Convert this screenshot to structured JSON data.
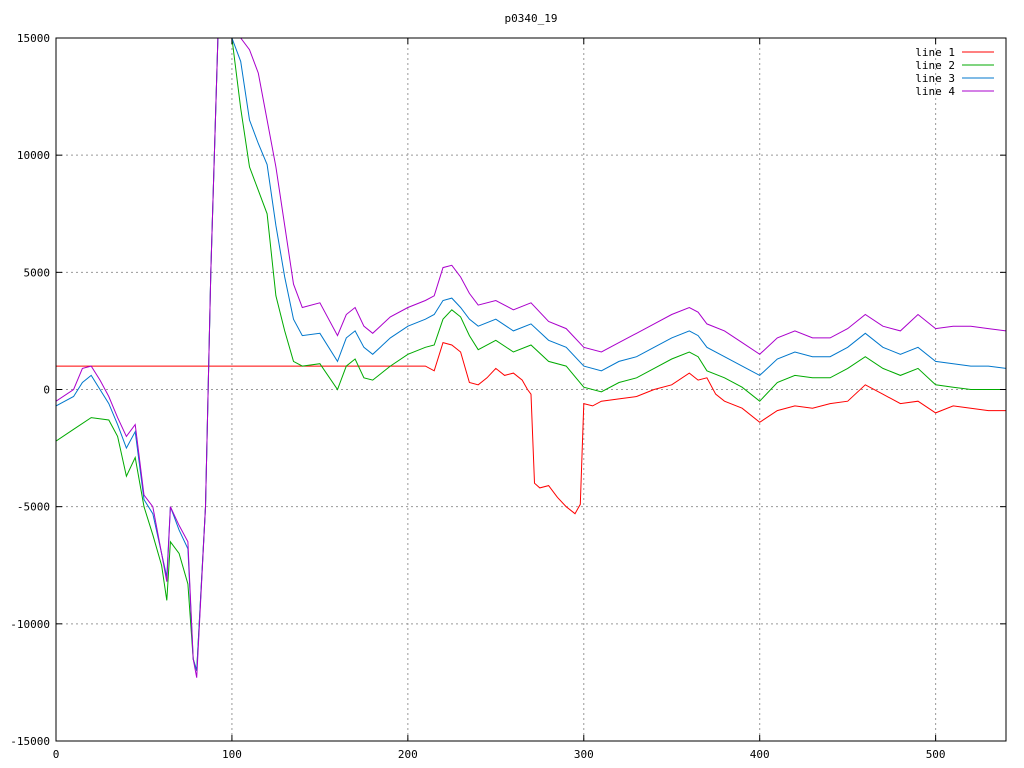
{
  "chart_data": {
    "type": "line",
    "title": "p0340_19",
    "xlabel": "",
    "ylabel": "",
    "xlim": [
      0,
      540
    ],
    "ylim": [
      -15000,
      15000
    ],
    "x_ticks": [
      0,
      100,
      200,
      300,
      400,
      500
    ],
    "y_ticks": [
      -15000,
      -10000,
      -5000,
      0,
      5000,
      10000,
      15000
    ],
    "grid": true,
    "legend_position": "top-right",
    "series": [
      {
        "name": "line 1",
        "color": "#ff0000",
        "points": [
          [
            0,
            1000
          ],
          [
            20,
            1000
          ],
          [
            50,
            1000
          ],
          [
            100,
            1000
          ],
          [
            150,
            1000
          ],
          [
            200,
            1000
          ],
          [
            210,
            1000
          ],
          [
            215,
            800
          ],
          [
            220,
            2000
          ],
          [
            225,
            1900
          ],
          [
            230,
            1600
          ],
          [
            235,
            300
          ],
          [
            240,
            200
          ],
          [
            245,
            500
          ],
          [
            250,
            900
          ],
          [
            255,
            600
          ],
          [
            260,
            700
          ],
          [
            265,
            400
          ],
          [
            268,
            0
          ],
          [
            270,
            -200
          ],
          [
            272,
            -4000
          ],
          [
            275,
            -4200
          ],
          [
            280,
            -4100
          ],
          [
            285,
            -4600
          ],
          [
            290,
            -5000
          ],
          [
            295,
            -5300
          ],
          [
            298,
            -4900
          ],
          [
            300,
            -600
          ],
          [
            305,
            -700
          ],
          [
            310,
            -500
          ],
          [
            320,
            -400
          ],
          [
            330,
            -300
          ],
          [
            340,
            0
          ],
          [
            350,
            200
          ],
          [
            360,
            700
          ],
          [
            365,
            400
          ],
          [
            370,
            500
          ],
          [
            375,
            -200
          ],
          [
            380,
            -500
          ],
          [
            390,
            -800
          ],
          [
            400,
            -1400
          ],
          [
            410,
            -900
          ],
          [
            420,
            -700
          ],
          [
            430,
            -800
          ],
          [
            440,
            -600
          ],
          [
            450,
            -500
          ],
          [
            460,
            200
          ],
          [
            470,
            -200
          ],
          [
            480,
            -600
          ],
          [
            490,
            -500
          ],
          [
            500,
            -1000
          ],
          [
            510,
            -700
          ],
          [
            520,
            -800
          ],
          [
            530,
            -900
          ],
          [
            540,
            -900
          ]
        ]
      },
      {
        "name": "line 2",
        "color": "#00aa00",
        "points": [
          [
            0,
            -2200
          ],
          [
            10,
            -1700
          ],
          [
            20,
            -1200
          ],
          [
            30,
            -1300
          ],
          [
            35,
            -2000
          ],
          [
            40,
            -3700
          ],
          [
            45,
            -2900
          ],
          [
            50,
            -5000
          ],
          [
            55,
            -6200
          ],
          [
            60,
            -7500
          ],
          [
            63,
            -9000
          ],
          [
            65,
            -6500
          ],
          [
            70,
            -7000
          ],
          [
            75,
            -8300
          ],
          [
            78,
            -11500
          ],
          [
            80,
            -12000
          ],
          [
            85,
            -5000
          ],
          [
            88,
            5000
          ],
          [
            92,
            15000
          ],
          [
            100,
            15000
          ],
          [
            105,
            12000
          ],
          [
            110,
            9500
          ],
          [
            115,
            8500
          ],
          [
            120,
            7500
          ],
          [
            125,
            4000
          ],
          [
            130,
            2500
          ],
          [
            135,
            1200
          ],
          [
            140,
            1000
          ],
          [
            150,
            1100
          ],
          [
            160,
            0
          ],
          [
            165,
            1000
          ],
          [
            170,
            1300
          ],
          [
            175,
            500
          ],
          [
            180,
            400
          ],
          [
            190,
            1000
          ],
          [
            200,
            1500
          ],
          [
            210,
            1800
          ],
          [
            215,
            1900
          ],
          [
            220,
            3000
          ],
          [
            225,
            3400
          ],
          [
            230,
            3100
          ],
          [
            235,
            2300
          ],
          [
            240,
            1700
          ],
          [
            250,
            2100
          ],
          [
            260,
            1600
          ],
          [
            270,
            1900
          ],
          [
            280,
            1200
          ],
          [
            290,
            1000
          ],
          [
            300,
            100
          ],
          [
            310,
            -100
          ],
          [
            320,
            300
          ],
          [
            330,
            500
          ],
          [
            340,
            900
          ],
          [
            350,
            1300
          ],
          [
            360,
            1600
          ],
          [
            365,
            1400
          ],
          [
            370,
            800
          ],
          [
            380,
            500
          ],
          [
            390,
            100
          ],
          [
            400,
            -500
          ],
          [
            410,
            300
          ],
          [
            420,
            600
          ],
          [
            430,
            500
          ],
          [
            440,
            500
          ],
          [
            450,
            900
          ],
          [
            460,
            1400
          ],
          [
            470,
            900
          ],
          [
            480,
            600
          ],
          [
            490,
            900
          ],
          [
            500,
            200
          ],
          [
            510,
            100
          ],
          [
            520,
            0
          ],
          [
            530,
            0
          ],
          [
            540,
            0
          ]
        ]
      },
      {
        "name": "line 3",
        "color": "#0077cc",
        "points": [
          [
            0,
            -700
          ],
          [
            10,
            -300
          ],
          [
            15,
            300
          ],
          [
            20,
            600
          ],
          [
            25,
            0
          ],
          [
            30,
            -600
          ],
          [
            35,
            -1500
          ],
          [
            40,
            -2500
          ],
          [
            45,
            -1800
          ],
          [
            50,
            -4700
          ],
          [
            55,
            -5300
          ],
          [
            60,
            -7000
          ],
          [
            63,
            -8000
          ],
          [
            65,
            -5000
          ],
          [
            70,
            -6000
          ],
          [
            75,
            -6800
          ],
          [
            78,
            -11500
          ],
          [
            80,
            -12000
          ],
          [
            85,
            -5000
          ],
          [
            88,
            5000
          ],
          [
            92,
            15000
          ],
          [
            100,
            15000
          ],
          [
            105,
            14000
          ],
          [
            110,
            11500
          ],
          [
            115,
            10500
          ],
          [
            120,
            9600
          ],
          [
            125,
            7000
          ],
          [
            130,
            4800
          ],
          [
            135,
            3000
          ],
          [
            140,
            2300
          ],
          [
            150,
            2400
          ],
          [
            160,
            1200
          ],
          [
            165,
            2200
          ],
          [
            170,
            2500
          ],
          [
            175,
            1800
          ],
          [
            180,
            1500
          ],
          [
            190,
            2200
          ],
          [
            200,
            2700
          ],
          [
            210,
            3000
          ],
          [
            215,
            3200
          ],
          [
            220,
            3800
          ],
          [
            225,
            3900
          ],
          [
            230,
            3500
          ],
          [
            235,
            3000
          ],
          [
            240,
            2700
          ],
          [
            250,
            3000
          ],
          [
            260,
            2500
          ],
          [
            270,
            2800
          ],
          [
            280,
            2100
          ],
          [
            290,
            1800
          ],
          [
            300,
            1000
          ],
          [
            310,
            800
          ],
          [
            320,
            1200
          ],
          [
            330,
            1400
          ],
          [
            340,
            1800
          ],
          [
            350,
            2200
          ],
          [
            360,
            2500
          ],
          [
            365,
            2300
          ],
          [
            370,
            1800
          ],
          [
            380,
            1400
          ],
          [
            390,
            1000
          ],
          [
            400,
            600
          ],
          [
            410,
            1300
          ],
          [
            420,
            1600
          ],
          [
            430,
            1400
          ],
          [
            440,
            1400
          ],
          [
            450,
            1800
          ],
          [
            460,
            2400
          ],
          [
            470,
            1800
          ],
          [
            480,
            1500
          ],
          [
            490,
            1800
          ],
          [
            500,
            1200
          ],
          [
            510,
            1100
          ],
          [
            520,
            1000
          ],
          [
            530,
            1000
          ],
          [
            540,
            900
          ]
        ]
      },
      {
        "name": "line 4",
        "color": "#aa00cc",
        "points": [
          [
            0,
            -500
          ],
          [
            10,
            0
          ],
          [
            15,
            900
          ],
          [
            20,
            1000
          ],
          [
            25,
            400
          ],
          [
            30,
            -300
          ],
          [
            35,
            -1200
          ],
          [
            40,
            -2000
          ],
          [
            45,
            -1500
          ],
          [
            50,
            -4500
          ],
          [
            55,
            -5000
          ],
          [
            60,
            -7000
          ],
          [
            63,
            -8200
          ],
          [
            65,
            -5000
          ],
          [
            70,
            -5800
          ],
          [
            75,
            -6500
          ],
          [
            78,
            -11500
          ],
          [
            80,
            -12300
          ],
          [
            85,
            -5000
          ],
          [
            88,
            5000
          ],
          [
            92,
            15000
          ],
          [
            100,
            15000
          ],
          [
            105,
            15000
          ],
          [
            110,
            14500
          ],
          [
            115,
            13500
          ],
          [
            120,
            11500
          ],
          [
            125,
            9500
          ],
          [
            130,
            7000
          ],
          [
            135,
            4500
          ],
          [
            140,
            3500
          ],
          [
            150,
            3700
          ],
          [
            160,
            2300
          ],
          [
            165,
            3200
          ],
          [
            170,
            3500
          ],
          [
            175,
            2700
          ],
          [
            180,
            2400
          ],
          [
            190,
            3100
          ],
          [
            200,
            3500
          ],
          [
            210,
            3800
          ],
          [
            215,
            4000
          ],
          [
            220,
            5200
          ],
          [
            225,
            5300
          ],
          [
            230,
            4800
          ],
          [
            235,
            4100
          ],
          [
            240,
            3600
          ],
          [
            250,
            3800
          ],
          [
            260,
            3400
          ],
          [
            270,
            3700
          ],
          [
            280,
            2900
          ],
          [
            290,
            2600
          ],
          [
            300,
            1800
          ],
          [
            310,
            1600
          ],
          [
            320,
            2000
          ],
          [
            330,
            2400
          ],
          [
            340,
            2800
          ],
          [
            350,
            3200
          ],
          [
            360,
            3500
          ],
          [
            365,
            3300
          ],
          [
            370,
            2800
          ],
          [
            380,
            2500
          ],
          [
            390,
            2000
          ],
          [
            400,
            1500
          ],
          [
            410,
            2200
          ],
          [
            420,
            2500
          ],
          [
            430,
            2200
          ],
          [
            440,
            2200
          ],
          [
            450,
            2600
          ],
          [
            460,
            3200
          ],
          [
            470,
            2700
          ],
          [
            480,
            2500
          ],
          [
            490,
            3200
          ],
          [
            500,
            2600
          ],
          [
            510,
            2700
          ],
          [
            520,
            2700
          ],
          [
            530,
            2600
          ],
          [
            540,
            2500
          ]
        ]
      }
    ]
  }
}
